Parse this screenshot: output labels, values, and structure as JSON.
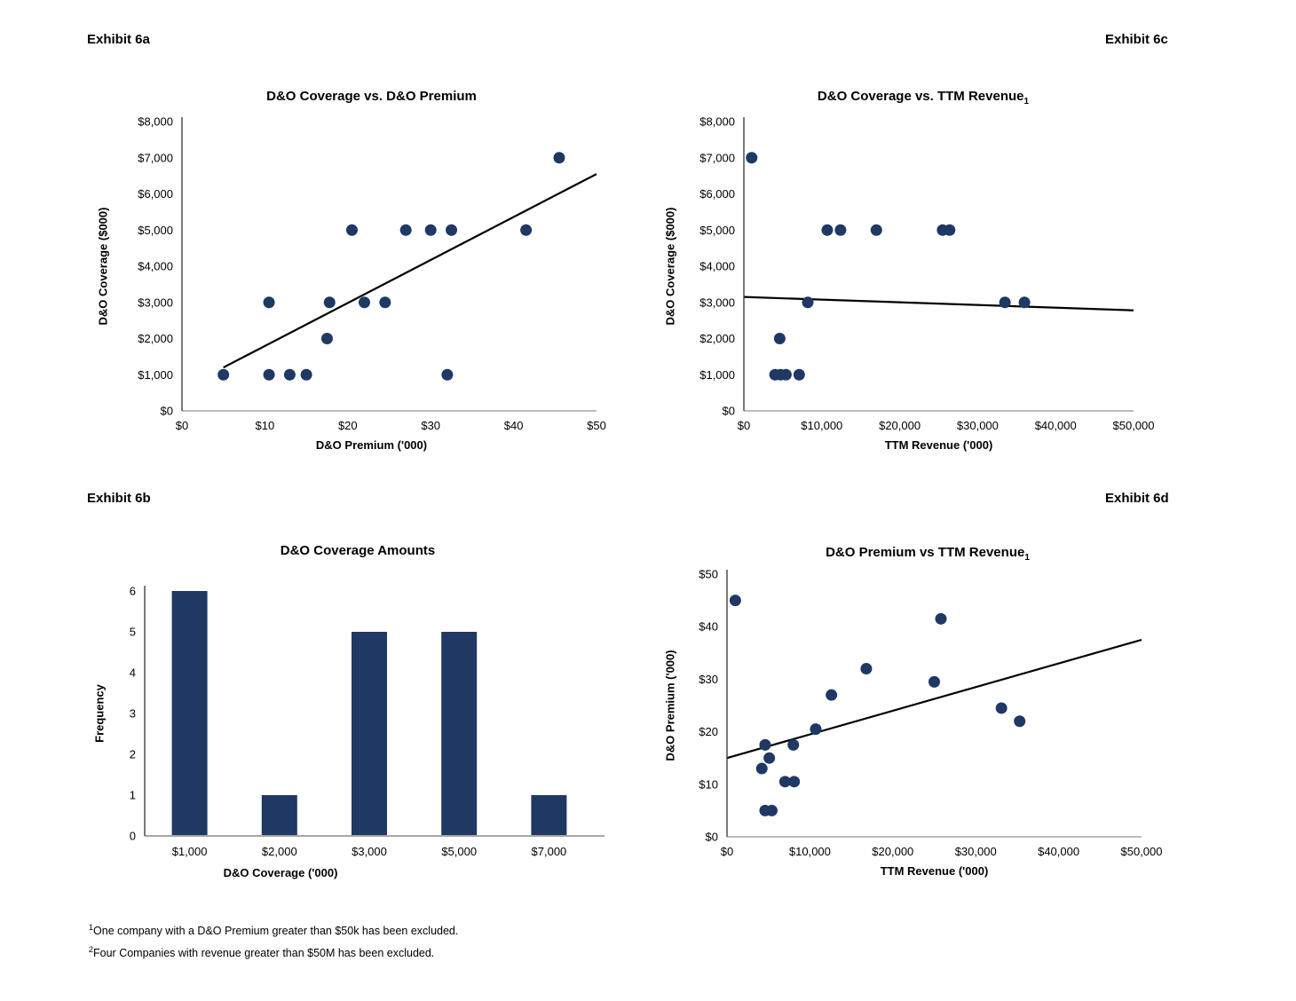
{
  "page": {
    "footnotes": [
      {
        "sup": "1",
        "text": "One company with a D&O Premium greater than $50k has been excluded."
      },
      {
        "sup": "2",
        "text": "Four Companies with revenue greater than $50M has been excluded."
      }
    ],
    "colors": {
      "dot": "#1F3864",
      "bar": "#1F3864",
      "trend_line": "#000000",
      "y_axis": "#333333",
      "x_axis": "#A6A6A6"
    }
  },
  "chart_data": [
    {
      "exhibit_label": "Exhibit 6a",
      "type": "scatter",
      "title": "D&O Coverage vs. D&O Premium",
      "title_sub": "",
      "xlabel": "D&O Premium ('000)",
      "ylabel": "D&O Coverage ($000)",
      "xlim": [
        0,
        50
      ],
      "ylim": [
        0,
        8000
      ],
      "grid": "off",
      "legend": "none",
      "x_tick_values": [
        0,
        10,
        20,
        30,
        40,
        50
      ],
      "x_tick_labels": [
        "$0",
        "$10",
        "$20",
        "$30",
        "$40",
        "$50"
      ],
      "y_tick_values": [
        0,
        1000,
        2000,
        3000,
        4000,
        5000,
        6000,
        7000,
        8000
      ],
      "y_tick_labels": [
        "$0",
        "$1,000",
        "$2,000",
        "$3,000",
        "$4,000",
        "$5,000",
        "$6,000",
        "$7,000",
        "$8,000"
      ],
      "points": [
        [
          5,
          1000
        ],
        [
          10.5,
          1000
        ],
        [
          13,
          1000
        ],
        [
          15,
          1000
        ],
        [
          32,
          1000
        ],
        [
          17.5,
          2000
        ],
        [
          10.5,
          3000
        ],
        [
          17.8,
          3000
        ],
        [
          22,
          3000
        ],
        [
          24.5,
          3000
        ],
        [
          20.5,
          5000
        ],
        [
          27,
          5000
        ],
        [
          30,
          5000
        ],
        [
          32.5,
          5000
        ],
        [
          41.5,
          5000
        ],
        [
          45.5,
          7000
        ]
      ],
      "trend": {
        "x1": 5,
        "y1": 1200,
        "x2": 50,
        "y2": 6550
      }
    },
    {
      "exhibit_label": "Exhibit 6b",
      "type": "bar",
      "title": "D&O Coverage Amounts",
      "title_sub": "",
      "xlabel": "D&O Coverage ('000)",
      "ylabel": "Frequency",
      "xlim": null,
      "ylim": [
        0,
        6
      ],
      "grid": "off",
      "legend": "none",
      "categories": [
        "$1,000",
        "$2,000",
        "$3,000",
        "$5,000",
        "$7,000"
      ],
      "values": [
        6,
        1,
        5,
        5,
        1
      ],
      "y_tick_values": [
        0,
        1,
        2,
        3,
        4,
        5,
        6
      ],
      "y_tick_labels": [
        "0",
        "1",
        "2",
        "3",
        "4",
        "5",
        "6"
      ]
    },
    {
      "exhibit_label": "Exhibit 6c",
      "type": "scatter",
      "title": "D&O Coverage vs. TTM Revenue",
      "title_sub": "1",
      "xlabel": "TTM Revenue ('000)",
      "ylabel": "D&O Coverage  ($000)",
      "xlim": [
        0,
        50000
      ],
      "ylim": [
        0,
        8000
      ],
      "grid": "off",
      "legend": "none",
      "x_tick_values": [
        0,
        10000,
        20000,
        30000,
        40000,
        50000
      ],
      "x_tick_labels": [
        "$0",
        "$10,000",
        "$20,000",
        "$30,000",
        "$40,000",
        "$50,000"
      ],
      "y_tick_values": [
        0,
        1000,
        2000,
        3000,
        4000,
        5000,
        6000,
        7000,
        8000
      ],
      "y_tick_labels": [
        "$0",
        "$1,000",
        "$2,000",
        "$3,000",
        "$4,000",
        "$5,000",
        "$6,000",
        "$7,000",
        "$8,000"
      ],
      "points": [
        [
          1000,
          7000
        ],
        [
          10700,
          5000
        ],
        [
          12400,
          5000
        ],
        [
          17000,
          5000
        ],
        [
          25500,
          5000
        ],
        [
          26400,
          5000
        ],
        [
          8200,
          3000
        ],
        [
          33500,
          3000
        ],
        [
          36000,
          3000
        ],
        [
          4600,
          2000
        ],
        [
          4000,
          1000
        ],
        [
          4700,
          1000
        ],
        [
          5400,
          1000
        ],
        [
          7100,
          1000
        ]
      ],
      "trend": {
        "x1": 0,
        "y1": 3150,
        "x2": 50000,
        "y2": 2780
      }
    },
    {
      "exhibit_label": "Exhibit 6d",
      "type": "scatter",
      "title": "D&O Premium vs TTM Revenue",
      "title_sub": "1",
      "xlabel": "TTM Revenue ('000)",
      "ylabel": "D&O Premium ('000)",
      "xlim": [
        0,
        50000
      ],
      "ylim": [
        0,
        50
      ],
      "grid": "off",
      "legend": "none",
      "x_tick_values": [
        0,
        10000,
        20000,
        30000,
        40000,
        50000
      ],
      "x_tick_labels": [
        "$0",
        "$10,000",
        "$20,000",
        "$30,000",
        "$40,000",
        "$50,000"
      ],
      "y_tick_values": [
        0,
        10,
        20,
        30,
        40,
        50
      ],
      "y_tick_labels": [
        "$0",
        "$10",
        "$20",
        "$30",
        "$40",
        "$50"
      ],
      "points": [
        [
          1000,
          45
        ],
        [
          25800,
          41.5
        ],
        [
          16800,
          32
        ],
        [
          25000,
          29.5
        ],
        [
          12600,
          27
        ],
        [
          33100,
          24.5
        ],
        [
          35300,
          22
        ],
        [
          10700,
          20.5
        ],
        [
          4600,
          17.5
        ],
        [
          8000,
          17.5
        ],
        [
          5100,
          15
        ],
        [
          4200,
          13
        ],
        [
          7000,
          10.5
        ],
        [
          8100,
          10.5
        ],
        [
          4600,
          5
        ],
        [
          5400,
          5
        ]
      ],
      "trend": {
        "x1": 0,
        "y1": 15,
        "x2": 50000,
        "y2": 37.5
      }
    }
  ]
}
